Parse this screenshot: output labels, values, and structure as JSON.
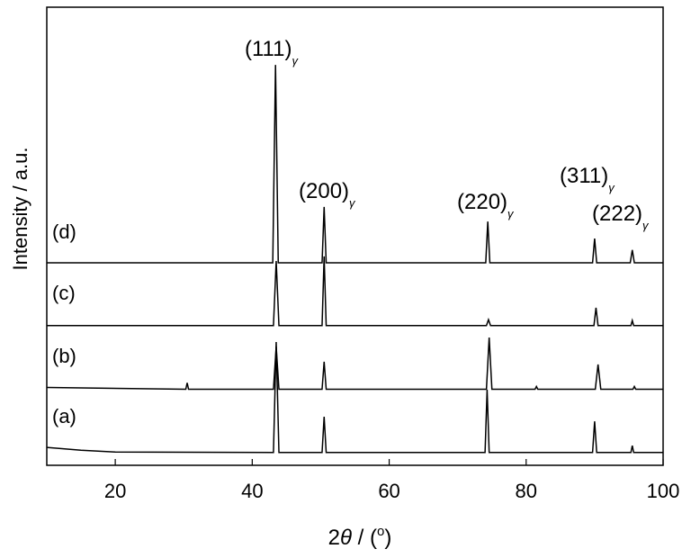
{
  "chart_data": {
    "type": "line",
    "color": "#000000",
    "xlim": [
      10,
      100
    ],
    "xticks": [
      20,
      40,
      60,
      80,
      100
    ],
    "ylim": [
      0,
      100
    ],
    "ylabel": "Intensity / a.u.",
    "xlabel": {
      "pre": "2",
      "theta": "θ",
      "mid": " / (",
      "sup": "o",
      "post": ")"
    },
    "annotations": [
      {
        "text": "(111)",
        "sub": "γ"
      },
      {
        "text": "(200)",
        "sub": "γ"
      },
      {
        "text": "(220)",
        "sub": "γ"
      },
      {
        "text": "(311)",
        "sub": "γ"
      },
      {
        "text": "(222)",
        "sub": "γ"
      }
    ],
    "series": [
      {
        "name": "(a)",
        "x": [
          10,
          15,
          20,
          43.1,
          43.5,
          43.9,
          50.2,
          50.5,
          50.8,
          74.0,
          74.3,
          74.6,
          89.7,
          90.0,
          90.3,
          95.3,
          95.5,
          95.7,
          100
        ],
        "values": [
          3.9,
          3.3,
          2.9,
          2.8,
          26.9,
          2.8,
          2.8,
          10.6,
          2.8,
          2.8,
          16.5,
          2.8,
          2.8,
          9.6,
          2.8,
          2.8,
          4.3,
          2.8,
          2.8
        ]
      },
      {
        "name": "(b)",
        "x": [
          10,
          30.3,
          30.5,
          30.7,
          43.1,
          43.5,
          43.9,
          50.2,
          50.5,
          50.8,
          74.2,
          74.6,
          75.0,
          81.3,
          81.5,
          81.7,
          90.1,
          90.5,
          90.9,
          95.6,
          95.8,
          96.0,
          100
        ],
        "values": [
          17.0,
          16.6,
          18.0,
          16.6,
          16.6,
          25.9,
          16.6,
          16.6,
          22.6,
          16.6,
          16.6,
          27.9,
          16.6,
          16.6,
          17.2,
          16.6,
          16.6,
          22.0,
          16.6,
          16.6,
          17.2,
          16.6,
          16.6
        ]
      },
      {
        "name": "(c)",
        "x": [
          10,
          43.1,
          43.5,
          43.9,
          50.2,
          50.5,
          50.8,
          74.2,
          74.5,
          74.8,
          89.9,
          90.2,
          90.5,
          95.3,
          95.5,
          95.7,
          100
        ],
        "values": [
          30.5,
          30.5,
          44.6,
          30.5,
          30.5,
          45.6,
          30.5,
          30.5,
          31.8,
          30.5,
          30.5,
          34.4,
          30.5,
          30.5,
          31.6,
          30.5,
          30.5
        ]
      },
      {
        "name": "(d)",
        "x": [
          10,
          43.0,
          43.4,
          43.8,
          50.2,
          50.5,
          50.8,
          74.1,
          74.4,
          74.7,
          89.7,
          90.0,
          90.3,
          95.2,
          95.5,
          95.8,
          100
        ],
        "values": [
          44.2,
          44.2,
          87.4,
          44.2,
          44.2,
          56.4,
          44.2,
          44.2,
          53.2,
          44.2,
          44.2,
          49.5,
          44.2,
          44.2,
          47.0,
          44.2,
          44.2
        ]
      }
    ]
  }
}
